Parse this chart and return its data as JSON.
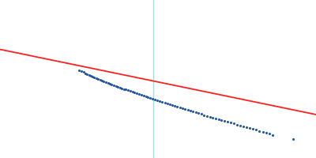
{
  "background_color": "#ffffff",
  "figure_width": 4.0,
  "figure_height": 2.0,
  "dpi": 100,
  "vertical_line_color": "#add8e6",
  "vertical_line_lw": 1.0,
  "red_line": {
    "x0": -0.03,
    "x1": 0.11,
    "y0": 3.05,
    "y1": 2.72,
    "color": "#ff2020",
    "lw": 1.3
  },
  "dot_color": "#1a4fa0",
  "dot_size": 5,
  "dot_alpha": 0.95,
  "xlim": [
    -0.03,
    0.11
  ],
  "ylim": [
    2.5,
    3.3
  ],
  "vertical_line_x": 0.038,
  "dots": [
    [
      0.005,
      2.945
    ],
    [
      0.006,
      2.94
    ],
    [
      0.007,
      2.935
    ],
    [
      0.0078,
      2.929
    ],
    [
      0.0086,
      2.924
    ],
    [
      0.0094,
      2.92
    ],
    [
      0.0102,
      2.915
    ],
    [
      0.011,
      2.911
    ],
    [
      0.0118,
      2.907
    ],
    [
      0.0126,
      2.903
    ],
    [
      0.0135,
      2.899
    ],
    [
      0.0143,
      2.895
    ],
    [
      0.0152,
      2.891
    ],
    [
      0.016,
      2.887
    ],
    [
      0.0169,
      2.884
    ],
    [
      0.0178,
      2.88
    ],
    [
      0.0186,
      2.876
    ],
    [
      0.0195,
      2.872
    ],
    [
      0.0204,
      2.868
    ],
    [
      0.0213,
      2.864
    ],
    [
      0.0222,
      2.861
    ],
    [
      0.0231,
      2.857
    ],
    [
      0.024,
      2.853
    ],
    [
      0.0249,
      2.849
    ],
    [
      0.0258,
      2.846
    ],
    [
      0.0268,
      2.842
    ],
    [
      0.0277,
      2.838
    ],
    [
      0.0287,
      2.834
    ],
    [
      0.0296,
      2.83
    ],
    [
      0.0306,
      2.826
    ],
    [
      0.0316,
      2.822
    ],
    [
      0.0326,
      2.818
    ],
    [
      0.0336,
      2.814
    ],
    [
      0.0346,
      2.81
    ],
    [
      0.0356,
      2.806
    ],
    [
      0.0366,
      2.803
    ],
    [
      0.0377,
      2.799
    ],
    [
      0.0387,
      2.795
    ],
    [
      0.0398,
      2.791
    ],
    [
      0.0408,
      2.787
    ],
    [
      0.0419,
      2.783
    ],
    [
      0.043,
      2.779
    ],
    [
      0.0441,
      2.775
    ],
    [
      0.0452,
      2.771
    ],
    [
      0.0463,
      2.767
    ],
    [
      0.0474,
      2.763
    ],
    [
      0.0485,
      2.759
    ],
    [
      0.0497,
      2.755
    ],
    [
      0.0508,
      2.751
    ],
    [
      0.052,
      2.747
    ],
    [
      0.0532,
      2.743
    ],
    [
      0.0543,
      2.739
    ],
    [
      0.0555,
      2.735
    ],
    [
      0.0567,
      2.731
    ],
    [
      0.058,
      2.727
    ],
    [
      0.0592,
      2.723
    ],
    [
      0.0604,
      2.718
    ],
    [
      0.0617,
      2.714
    ],
    [
      0.063,
      2.71
    ],
    [
      0.0642,
      2.706
    ],
    [
      0.0655,
      2.701
    ],
    [
      0.0668,
      2.697
    ],
    [
      0.0681,
      2.693
    ],
    [
      0.0694,
      2.688
    ],
    [
      0.0708,
      2.684
    ],
    [
      0.0721,
      2.679
    ],
    [
      0.0735,
      2.675
    ],
    [
      0.0749,
      2.67
    ],
    [
      0.0763,
      2.666
    ],
    [
      0.0777,
      2.661
    ],
    [
      0.0791,
      2.657
    ],
    [
      0.0805,
      2.652
    ],
    [
      0.082,
      2.647
    ],
    [
      0.0834,
      2.643
    ],
    [
      0.0849,
      2.638
    ],
    [
      0.0864,
      2.633
    ],
    [
      0.0879,
      2.628
    ],
    [
      0.0894,
      2.623
    ],
    [
      0.0909,
      2.618
    ],
    [
      0.1,
      2.595
    ]
  ]
}
